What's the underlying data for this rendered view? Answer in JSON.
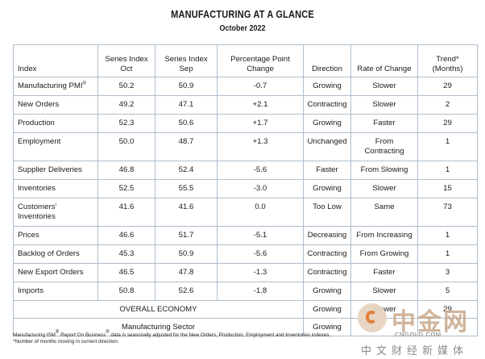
{
  "title": "MANUFACTURING AT A GLANCE",
  "subtitle": "October 2022",
  "headers": {
    "index": "Index",
    "oct": [
      "Series Index",
      "Oct"
    ],
    "sep": [
      "Series Index",
      "Sep"
    ],
    "change": [
      "Percentage Point",
      "Change"
    ],
    "direction": "Direction",
    "rate": "Rate of Change",
    "trend": [
      "Trend*",
      "(Months)"
    ]
  },
  "rows": [
    {
      "index": "Manufacturing PMI",
      "sup": "®",
      "oct": "50.2",
      "sep": "50.9",
      "change": "-0.7",
      "direction": "Growing",
      "rate": "Slower",
      "trend": "29"
    },
    {
      "index": "New Orders",
      "oct": "49.2",
      "sep": "47.1",
      "change": "+2.1",
      "direction": "Contracting",
      "rate": "Slower",
      "trend": "2"
    },
    {
      "index": "Production",
      "oct": "52.3",
      "sep": "50.6",
      "change": "+1.7",
      "direction": "Growing",
      "rate": "Faster",
      "trend": "29"
    },
    {
      "index": "Employment",
      "oct": "50.0",
      "sep": "48.7",
      "change": "+1.3",
      "direction": "Unchanged",
      "rate": [
        "From",
        "Contracting"
      ],
      "trend": "1"
    },
    {
      "index": "Supplier Deliveries",
      "oct": "46.8",
      "sep": "52.4",
      "change": "-5.6",
      "direction": "Faster",
      "rate": "From Slowing",
      "trend": "1"
    },
    {
      "index": "Inventories",
      "oct": "52.5",
      "sep": "55.5",
      "change": "-3.0",
      "direction": "Growing",
      "rate": "Slower",
      "trend": "15"
    },
    {
      "index": [
        "Customers'",
        "Inventories"
      ],
      "oct": "41.6",
      "sep": "41.6",
      "change": "0.0",
      "direction": "Too Low",
      "rate": "Same",
      "trend": "73"
    },
    {
      "index": "Prices",
      "oct": "46.6",
      "sep": "51.7",
      "change": "-5.1",
      "direction": "Decreasing",
      "rate": "From Increasing",
      "trend": "1"
    },
    {
      "index": "Backlog of Orders",
      "oct": "45.3",
      "sep": "50.9",
      "change": "-5.6",
      "direction": "Contracting",
      "rate": "From Growing",
      "trend": "1"
    },
    {
      "index": "New Export Orders",
      "oct": "46.5",
      "sep": "47.8",
      "change": "-1.3",
      "direction": "Contracting",
      "rate": "Faster",
      "trend": "3"
    },
    {
      "index": "Imports",
      "oct": "50.8",
      "sep": "52.6",
      "change": "-1.8",
      "direction": "Growing",
      "rate": "Slower",
      "trend": "5"
    }
  ],
  "summary": [
    {
      "label": "OVERALL ECONOMY",
      "direction": "Growing",
      "rate": "Slower",
      "trend": "29"
    },
    {
      "label": "Manufacturing Sector",
      "direction": "Growing",
      "rate": "",
      "trend": ""
    }
  ],
  "footnote": {
    "pre": "Manufacturing ISM",
    "sup": "®",
    "report": "Report On Business",
    "sup2": "®",
    "post": " data is seasonally adjusted for the New Orders, Production, Employment and Inventories indexes.",
    "line2": "*Number of months moving in current direction."
  },
  "watermark": {
    "name": "中金网",
    "url": "CNGOLD.COM",
    "tagline": "中文财经新媒体"
  }
}
